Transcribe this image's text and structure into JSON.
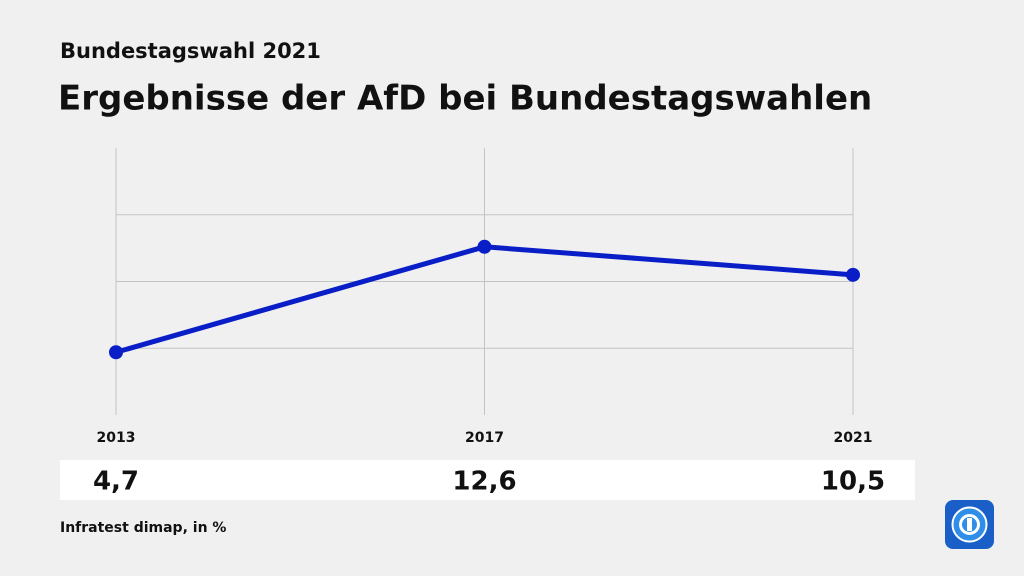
{
  "chart_data": {
    "type": "line",
    "subtitle": "Bundestagswahl 2021",
    "title": "Ergebnisse der AfD bei Bundestagswahlen",
    "categories": [
      "2013",
      "2017",
      "2021"
    ],
    "series": [
      {
        "name": "AfD",
        "color": "#0a1ec8",
        "values": [
          4.7,
          12.6,
          10.5
        ],
        "value_labels": [
          "4,7",
          "12,6",
          "10,5"
        ]
      }
    ],
    "ylim": [
      0,
      20
    ],
    "yticks": [
      5,
      10,
      15
    ],
    "grid": true,
    "source": "Infratest dimap, in %"
  }
}
